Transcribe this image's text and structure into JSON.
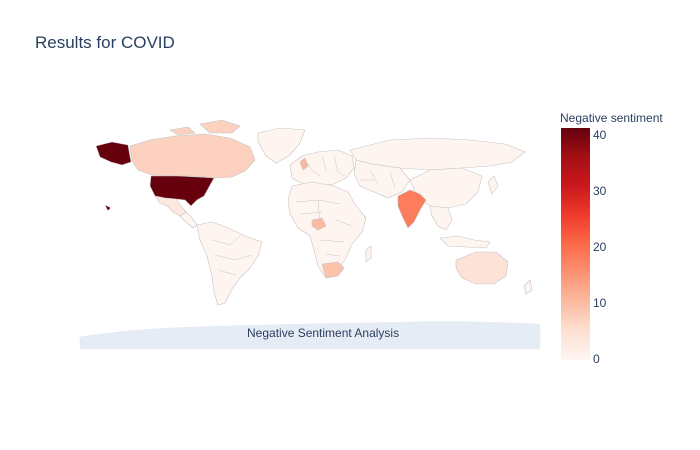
{
  "title": "Results for COVID",
  "map": {
    "annotation": "Negative Sentiment Analysis",
    "projection": "natural earth",
    "land_color": "#fff5f0",
    "antarctica_color": "#e5ecf6",
    "border_color": "#c4c4c4"
  },
  "colorbar": {
    "title": "Negative sentiment",
    "colorscale": "Reds",
    "ticks": [
      "0",
      "10",
      "20",
      "30",
      "40"
    ],
    "range": [
      0,
      41
    ],
    "colors": [
      "#fff5f0",
      "#fcbba1",
      "#fc6a4a",
      "#cb181d",
      "#67000d"
    ]
  },
  "map_data": [
    {
      "country": "United States",
      "value": 41
    },
    {
      "country": "India",
      "value": 19
    },
    {
      "country": "Canada",
      "value": 3
    },
    {
      "country": "South Africa",
      "value": 4
    },
    {
      "country": "Nigeria",
      "value": 5
    },
    {
      "country": "United Kingdom",
      "value": 6
    },
    {
      "country": "Australia",
      "value": 2
    },
    {
      "country": "Mexico",
      "value": 1
    },
    {
      "country": "Russia",
      "value": 0
    },
    {
      "country": "China",
      "value": 0
    },
    {
      "country": "Brazil",
      "value": 0
    }
  ]
}
